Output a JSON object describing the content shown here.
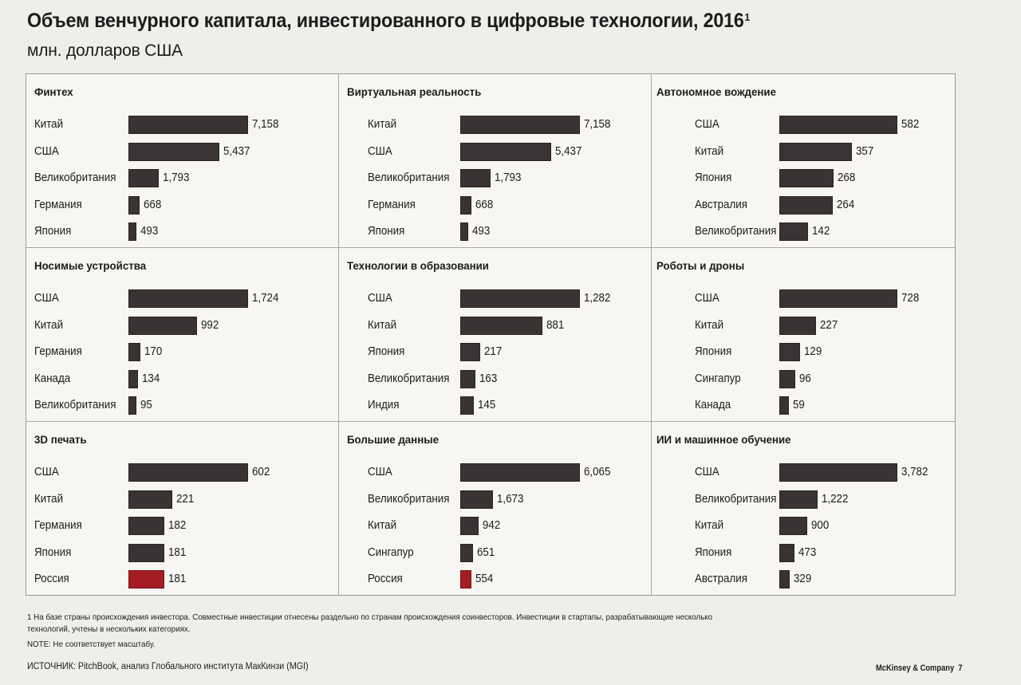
{
  "title": "Объем венчурного капитала, инвестированного в цифровые технологии, 2016",
  "title_footnote_mark": "1",
  "subtitle": "млн. долларов США",
  "footnote": "1  На базе страны происхождения инвестора. Совместные инвестиции отнесены раздельно по странам происхождения соинвесторов. Инвестиции в стартапы, разрабатывающие несколько технологий, учтены в нескольких категориях.",
  "note": "NOTE: Не соответствует масштабу.",
  "source": "ИСТОЧНИК: PitchBook, анализ Глобального института МакКинзи (MGI)",
  "brand": "McKinsey & Company",
  "page_number": "7",
  "colors": {
    "bar": "#3b3333",
    "highlight": "#a41d22"
  },
  "chart_data": [
    {
      "type": "bar",
      "title": "Финтех",
      "categories": [
        "Китай",
        "США",
        "Великобритания",
        "Германия",
        "Япония"
      ],
      "values": [
        7158,
        5437,
        1793,
        668,
        493
      ],
      "labels": [
        "7,158",
        "5,437",
        "1,793",
        "668",
        "493"
      ],
      "highlight": []
    },
    {
      "type": "bar",
      "title": "Виртуальная реальность",
      "categories": [
        "Китай",
        "США",
        "Великобритания",
        "Германия",
        "Япония"
      ],
      "values": [
        7158,
        5437,
        1793,
        668,
        493
      ],
      "labels": [
        "7,158",
        "5,437",
        "1,793",
        "668",
        "493"
      ],
      "highlight": []
    },
    {
      "type": "bar",
      "title": "Автономное вождение",
      "categories": [
        "США",
        "Китай",
        "Япония",
        "Австралия",
        "Великобритания"
      ],
      "values": [
        582,
        357,
        268,
        264,
        142
      ],
      "labels": [
        "582",
        "357",
        "268",
        "264",
        "142"
      ],
      "highlight": []
    },
    {
      "type": "bar",
      "title": "Носимые устройства",
      "categories": [
        "США",
        "Китай",
        "Германия",
        "Канада",
        "Великобритания"
      ],
      "values": [
        1724,
        992,
        170,
        134,
        95
      ],
      "labels": [
        "1,724",
        "992",
        "170",
        "134",
        "95"
      ],
      "highlight": []
    },
    {
      "type": "bar",
      "title": "Технологии в образовании",
      "categories": [
        "США",
        "Китай",
        "Япония",
        "Великобритания",
        "Индия"
      ],
      "values": [
        1282,
        881,
        217,
        163,
        145
      ],
      "labels": [
        "1,282",
        "881",
        "217",
        "163",
        "145"
      ],
      "highlight": []
    },
    {
      "type": "bar",
      "title": "Роботы и дроны",
      "categories": [
        "США",
        "Китай",
        "Япония",
        "Сингапур",
        "Канада"
      ],
      "values": [
        728,
        227,
        129,
        96,
        59
      ],
      "labels": [
        "728",
        "227",
        "129",
        "96",
        "59"
      ],
      "highlight": []
    },
    {
      "type": "bar",
      "title": "3D печать",
      "categories": [
        "США",
        "Китай",
        "Германия",
        "Япония",
        "Россия"
      ],
      "values": [
        602,
        221,
        182,
        181,
        181
      ],
      "labels": [
        "602",
        "221",
        "182",
        "181",
        "181"
      ],
      "highlight": [
        4
      ]
    },
    {
      "type": "bar",
      "title": "Большие данные",
      "categories": [
        "США",
        "Великобритания",
        "Китай",
        "Сингапур",
        "Россия"
      ],
      "values": [
        6065,
        1673,
        942,
        651,
        554
      ],
      "labels": [
        "6,065",
        "1,673",
        "942",
        "651",
        "554"
      ],
      "highlight": [
        4
      ]
    },
    {
      "type": "bar",
      "title": "ИИ и машинное обучение",
      "categories": [
        "США",
        "Великобритания",
        "Китай",
        "Япония",
        "Австралия"
      ],
      "values": [
        3782,
        1222,
        900,
        473,
        329
      ],
      "labels": [
        "3,782",
        "1,222",
        "900",
        "473",
        "329"
      ],
      "highlight": []
    }
  ]
}
